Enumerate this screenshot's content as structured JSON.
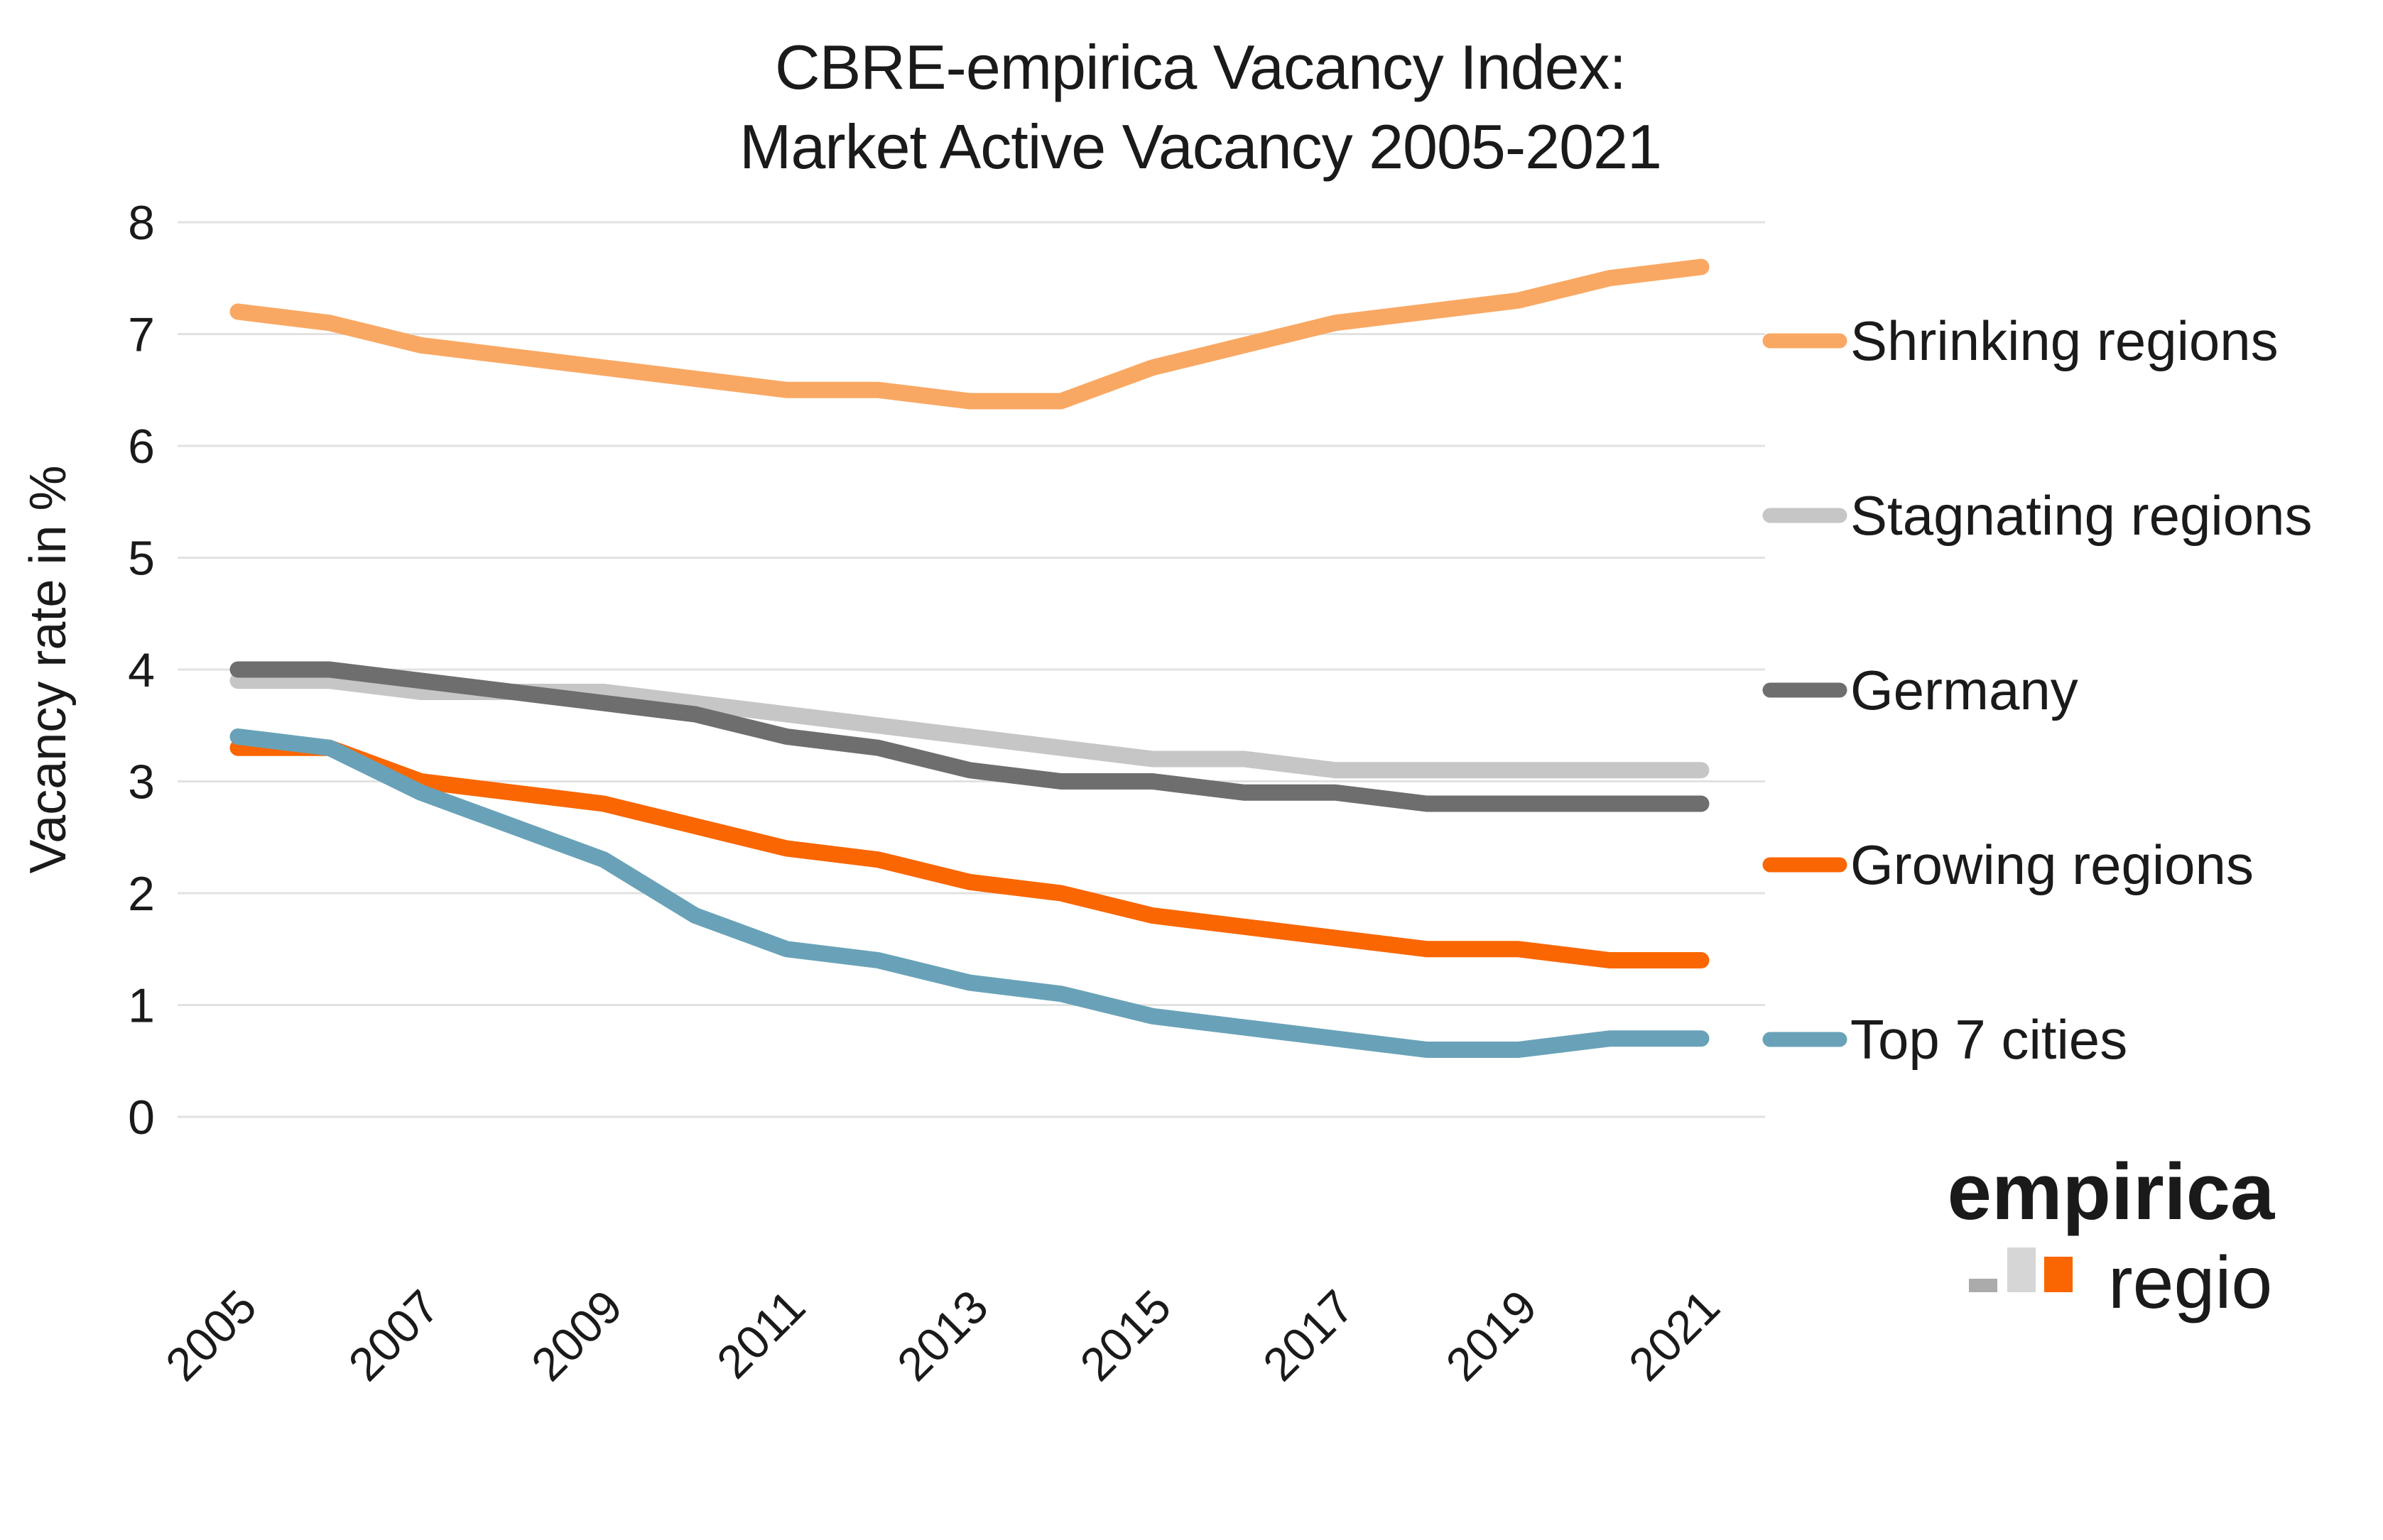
{
  "page": {
    "background": "#ffffff",
    "text_color": "#1a1a1a",
    "gridline_color": "#e2e2e2"
  },
  "title": {
    "line1": "CBRE-empirica Vacancy Index:",
    "line2": "Market Active Vacancy 2005-2021"
  },
  "chart_data": {
    "type": "line",
    "title": "CBRE-empirica Vacancy Index: Market Active Vacancy 2005-2021",
    "xlabel": "",
    "ylabel": "Vacancy rate in %",
    "ylim": [
      0,
      8
    ],
    "yticks": [
      0,
      1,
      2,
      3,
      4,
      5,
      6,
      7,
      8
    ],
    "xticks": [
      2005,
      2007,
      2009,
      2011,
      2013,
      2015,
      2017,
      2019,
      2021
    ],
    "grid": true,
    "legend_position": "right",
    "x": [
      2005,
      2006,
      2007,
      2008,
      2009,
      2010,
      2011,
      2012,
      2013,
      2014,
      2015,
      2016,
      2017,
      2018,
      2019,
      2020,
      2021
    ],
    "series": [
      {
        "name": "Shrinking regions",
        "color": "#F9A863",
        "values": [
          7.2,
          7.1,
          6.9,
          6.8,
          6.7,
          6.6,
          6.5,
          6.5,
          6.4,
          6.4,
          6.7,
          6.9,
          7.1,
          7.2,
          7.3,
          7.5,
          7.6
        ]
      },
      {
        "name": "Stagnating regions",
        "color": "#C6C6C6",
        "values": [
          3.9,
          3.9,
          3.8,
          3.8,
          3.8,
          3.7,
          3.6,
          3.5,
          3.4,
          3.3,
          3.2,
          3.2,
          3.1,
          3.1,
          3.1,
          3.1,
          3.1
        ]
      },
      {
        "name": "Germany",
        "color": "#6E6E6E",
        "values": [
          4.0,
          4.0,
          3.9,
          3.8,
          3.7,
          3.6,
          3.4,
          3.3,
          3.1,
          3.0,
          3.0,
          2.9,
          2.9,
          2.8,
          2.8,
          2.8,
          2.8
        ]
      },
      {
        "name": "Growing regions",
        "color": "#F96602",
        "values": [
          3.3,
          3.3,
          3.0,
          2.9,
          2.8,
          2.6,
          2.4,
          2.3,
          2.1,
          2.0,
          1.8,
          1.7,
          1.6,
          1.5,
          1.5,
          1.4,
          1.4
        ]
      },
      {
        "name": "Top 7 cities",
        "color": "#69A2B8",
        "values": [
          3.4,
          3.3,
          2.9,
          2.6,
          2.3,
          1.8,
          1.5,
          1.4,
          1.2,
          1.1,
          0.9,
          0.8,
          0.7,
          0.6,
          0.6,
          0.7,
          0.7
        ]
      }
    ]
  },
  "logo": {
    "primary": "empirica",
    "secondary": "regio",
    "orange": "#F96602",
    "gray": "#9C9C9C",
    "bar_dark": "#ABABAB",
    "bar_light": "#D6D6D6"
  }
}
